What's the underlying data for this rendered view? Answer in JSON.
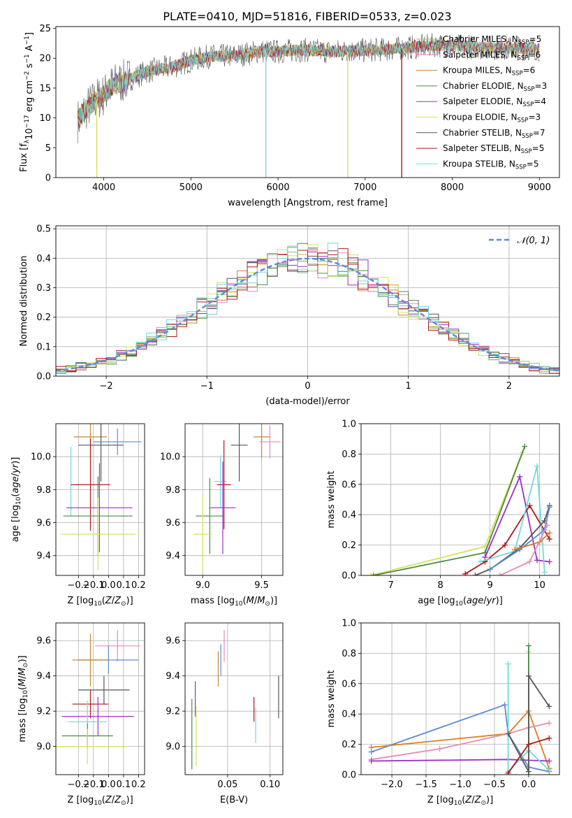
{
  "title": "PLATE=0410, MJD=51816, FIBERID=0533, z=0.023",
  "colors": {
    "Chabrier MILES": "#8fbf8f",
    "Salpeter MILES": "#e78ac3",
    "Kroupa MILES": "#c08a2a",
    "Chabrier ELODIE": "#4a8a4a",
    "Salpeter ELODIE": "#9b30c0",
    "Kroupa ELODIE": "#d8e05a",
    "Chabrier STELIB": "#555555",
    "Salpeter STELIB": "#b01818",
    "Kroupa STELIB": "#70d8dc",
    "gaussian": "#5b8ad8",
    "blue": "#5b8ad8",
    "orange": "#e07a20",
    "pink": "#e88ab8"
  },
  "chart_data": [
    {
      "type": "line",
      "panel": "spectrum",
      "xlabel": "wavelength [Angstrom, rest frame]",
      "ylabel": "Flux [fλ10⁻¹⁷ erg cm⁻² s⁻¹ A⁻¹]",
      "xlim": [
        3450,
        9230
      ],
      "ylim": [
        0,
        25.3
      ],
      "xticks": [
        4000,
        5000,
        6000,
        7000,
        8000,
        9000
      ],
      "yticks": [
        0,
        5,
        10,
        15,
        20,
        25
      ],
      "continuum": {
        "x": [
          3700,
          3800,
          3900,
          4000,
          4100,
          4300,
          4500,
          4800,
          5000,
          5200,
          5500,
          5800,
          6000,
          6300,
          6600,
          7000,
          7400,
          7800,
          8200,
          8600,
          9000
        ],
        "y": [
          9.5,
          11.5,
          13.0,
          13.8,
          15.5,
          16.5,
          17.8,
          18.6,
          19.6,
          20.3,
          20.4,
          21.2,
          21.1,
          21.4,
          21.1,
          21.3,
          21.6,
          22.2,
          21.9,
          21.7,
          21.6
        ]
      },
      "legend": [
        {
          "label": "Chabrier MILES, N",
          "sub": "SSP",
          "tail": "=5",
          "key": "Chabrier MILES"
        },
        {
          "label": "Salpeter MILES, N",
          "sub": "SSP",
          "tail": "=6",
          "key": "Salpeter MILES"
        },
        {
          "label": "Kroupa MILES, N",
          "sub": "SSP",
          "tail": "=6",
          "key": "Kroupa MILES"
        },
        {
          "label": "Chabrier ELODIE, N",
          "sub": "SSP",
          "tail": "=3",
          "key": "Chabrier ELODIE"
        },
        {
          "label": "Salpeter ELODIE, N",
          "sub": "SSP",
          "tail": "=4",
          "key": "Salpeter ELODIE"
        },
        {
          "label": "Kroupa ELODIE, N",
          "sub": "SSP",
          "tail": "=3",
          "key": "Kroupa ELODIE"
        },
        {
          "label": "Chabrier STELIB, N",
          "sub": "SSP",
          "tail": "=7",
          "key": "Chabrier STELIB"
        },
        {
          "label": "Salpeter STELIB, N",
          "sub": "SSP",
          "tail": "=5",
          "key": "Salpeter STELIB"
        },
        {
          "label": "Kroupa STELIB, N",
          "sub": "SSP",
          "tail": "=5",
          "key": "Kroupa STELIB"
        }
      ],
      "drops": [
        {
          "x": 3920,
          "series": "Kroupa ELODIE"
        },
        {
          "x": 5860,
          "series": "Kroupa STELIB"
        },
        {
          "x": 6800,
          "series": "Kroupa ELODIE"
        },
        {
          "x": 7420,
          "series": "Salpeter STELIB"
        }
      ]
    },
    {
      "type": "histogram",
      "panel": "residuals",
      "xlabel": "(data-model)/error",
      "ylabel": "Normed distribution",
      "xlim": [
        -2.5,
        2.5
      ],
      "ylim": [
        0,
        0.51
      ],
      "xticks": [
        -2,
        -1,
        0,
        1,
        2
      ],
      "yticks": [
        0.0,
        0.1,
        0.2,
        0.3,
        0.4,
        0.5
      ],
      "bin_width": 0.1,
      "legend": "𝒩(0, 1)",
      "grid": true
    },
    {
      "type": "errorbar",
      "panel": "age-vs-Z",
      "xlabel": "Z [log₁₀(Z/Z⊙)]",
      "ylabel": "age  [log₁₀(age/yr)]",
      "xlim": [
        -0.35,
        0.24
      ],
      "ylim": [
        9.28,
        10.2
      ],
      "xticks": [
        -0.2,
        -0.1,
        0.0,
        0.1,
        0.2
      ],
      "yticks": [
        9.4,
        9.6,
        9.8,
        10.0
      ],
      "points": [
        {
          "key": "Kroupa MILES",
          "x": -0.12,
          "xerr": 0.11,
          "y": 10.12,
          "yerr": 0.13
        },
        {
          "key": "blue",
          "x": 0.06,
          "xerr": 0.16,
          "y": 10.09,
          "yerr": 0.08
        },
        {
          "key": "Chabrier STELIB",
          "x": -0.05,
          "xerr": 0.15,
          "y": 10.07,
          "yerr": 0.22
        },
        {
          "key": "Kroupa STELIB",
          "x": -0.25,
          "xerr": 0.0,
          "y": 9.85,
          "yerr": 0.21
        },
        {
          "key": "Salpeter STELIB",
          "x": -0.12,
          "xerr": 0.13,
          "y": 9.83,
          "yerr": 0.28
        },
        {
          "key": "Salpeter ELODIE",
          "x": -0.06,
          "xerr": 0.22,
          "y": 9.69,
          "yerr": 0.27
        },
        {
          "key": "Chabrier ELODIE",
          "x": -0.07,
          "xerr": 0.23,
          "y": 9.64,
          "yerr": 0.24
        },
        {
          "key": "Kroupa ELODIE",
          "x": -0.07,
          "xerr": 0.25,
          "y": 9.53,
          "yerr": 0.22
        }
      ]
    },
    {
      "type": "errorbar",
      "panel": "age-vs-mass",
      "xlabel": "mass [log₁₀(M/M⊙)]",
      "ylabel": "",
      "xlim": [
        8.85,
        9.68
      ],
      "ylim": [
        9.28,
        10.2
      ],
      "xticks": [
        9.0,
        9.5
      ],
      "yticks": [
        9.4,
        9.6,
        9.8,
        10.0
      ],
      "points": [
        {
          "key": "Kroupa MILES",
          "x": 9.5,
          "xerr": 0.07,
          "y": 10.12,
          "yerr": 0.13
        },
        {
          "key": "Salpeter MILES",
          "x": 9.57,
          "xerr": 0.09,
          "y": 10.09,
          "yerr": 0.1
        },
        {
          "key": "Chabrier STELIB",
          "x": 9.31,
          "xerr": 0.07,
          "y": 10.07,
          "yerr": 0.22
        },
        {
          "key": "Kroupa STELIB",
          "x": 9.15,
          "xerr": 0.05,
          "y": 9.85,
          "yerr": 0.16
        },
        {
          "key": "Salpeter STELIB",
          "x": 9.18,
          "xerr": 0.06,
          "y": 9.83,
          "yerr": 0.27
        },
        {
          "key": "Salpeter ELODIE",
          "x": 9.17,
          "xerr": 0.11,
          "y": 9.69,
          "yerr": 0.28
        },
        {
          "key": "Chabrier ELODIE",
          "x": 9.06,
          "xerr": 0.12,
          "y": 9.64,
          "yerr": 0.23
        },
        {
          "key": "Kroupa ELODIE",
          "x": 9.0,
          "xerr": 0.08,
          "y": 9.53,
          "yerr": 0.23
        }
      ]
    },
    {
      "type": "line",
      "panel": "mass-weight-vs-age",
      "xlabel": "age  [log₁₀(age/yr)]",
      "ylabel": "mass weight",
      "xlim": [
        6.4,
        10.4
      ],
      "ylim": [
        0,
        1
      ],
      "xticks": [
        7,
        8,
        9,
        10
      ],
      "yticks": [
        0.0,
        0.2,
        0.4,
        0.6,
        0.8,
        1.0
      ],
      "series": [
        {
          "key": "Kroupa ELODIE",
          "x": [
            6.6,
            8.9,
            9.65
          ],
          "y": [
            0.0,
            0.19,
            0.81
          ]
        },
        {
          "key": "Chabrier ELODIE",
          "x": [
            6.65,
            8.9,
            9.7
          ],
          "y": [
            0.0,
            0.15,
            0.85
          ]
        },
        {
          "key": "Salpeter ELODIE",
          "x": [
            8.9,
            9.6,
            9.95,
            10.2
          ],
          "y": [
            0.12,
            0.65,
            0.1,
            0.09
          ]
        },
        {
          "key": "Salpeter STELIB",
          "x": [
            8.5,
            8.9,
            9.3,
            9.8,
            10.2
          ],
          "y": [
            0.01,
            0.09,
            0.2,
            0.46,
            0.24
          ]
        },
        {
          "key": "Kroupa STELIB",
          "x": [
            8.8,
            9.5,
            9.95,
            10.1
          ],
          "y": [
            0.09,
            0.16,
            0.72,
            0.02
          ]
        },
        {
          "key": "Chabrier STELIB",
          "x": [
            8.7,
            9.0,
            9.6,
            10.1,
            10.2
          ],
          "y": [
            0.0,
            0.04,
            0.18,
            0.36,
            0.46
          ]
        },
        {
          "key": "blue",
          "x": [
            9.0,
            9.6,
            10.1,
            10.2
          ],
          "y": [
            0.04,
            0.17,
            0.3,
            0.45
          ]
        },
        {
          "key": "orange",
          "x": [
            9.5,
            10.0,
            10.2
          ],
          "y": [
            0.17,
            0.22,
            0.28
          ]
        },
        {
          "key": "pink",
          "x": [
            9.2,
            9.8,
            10.15
          ],
          "y": [
            0.0,
            0.09,
            0.33
          ]
        }
      ]
    },
    {
      "type": "errorbar",
      "panel": "mass-vs-Z",
      "xlabel": "Z [log₁₀(Z/Z⊙)]",
      "ylabel": "mass [log₁₀(M/M⊙)]",
      "xlim": [
        -0.35,
        0.24
      ],
      "ylim": [
        8.84,
        9.7
      ],
      "xticks": [
        -0.2,
        -0.1,
        0.0,
        0.1,
        0.2
      ],
      "yticks": [
        9.0,
        9.2,
        9.4,
        9.6
      ],
      "points": [
        {
          "key": "Salpeter MILES",
          "x": 0.06,
          "xerr": 0.15,
          "y": 9.57,
          "yerr": 0.09
        },
        {
          "key": "blue",
          "x": 0.0,
          "xerr": 0.2,
          "y": 9.49,
          "yerr": 0.08
        },
        {
          "key": "Kroupa MILES",
          "x": -0.12,
          "xerr": 0.12,
          "y": 9.49,
          "yerr": 0.15
        },
        {
          "key": "Chabrier STELIB",
          "x": -0.03,
          "xerr": 0.17,
          "y": 9.32,
          "yerr": 0.08
        },
        {
          "key": "Salpeter STELIB",
          "x": -0.12,
          "xerr": 0.12,
          "y": 9.24,
          "yerr": 0.08
        },
        {
          "key": "Salpeter ELODIE",
          "x": -0.07,
          "xerr": 0.24,
          "y": 9.17,
          "yerr": 0.11
        },
        {
          "key": "Kroupa STELIB",
          "x": -0.14,
          "xerr": 0.13,
          "y": 9.14,
          "yerr": 0.12
        },
        {
          "key": "Chabrier ELODIE",
          "x": -0.14,
          "xerr": 0.17,
          "y": 9.06,
          "yerr": 0.07
        },
        {
          "key": "Kroupa ELODIE",
          "x": -0.14,
          "xerr": 0.26,
          "y": 9.0,
          "yerr": 0.1
        }
      ]
    },
    {
      "type": "errorbar",
      "panel": "mass-vs-EBV",
      "xlabel": "E(B-V)",
      "ylabel": "",
      "xlim": [
        0.0,
        0.115
      ],
      "ylim": [
        8.84,
        9.7
      ],
      "xticks": [
        0.05,
        0.1
      ],
      "yticks": [
        9.0,
        9.2,
        9.4,
        9.6
      ],
      "points": [
        {
          "key": "Salpeter MILES",
          "x": 0.046,
          "xerr": 0.0,
          "y": 9.57,
          "yerr": 0.09
        },
        {
          "key": "blue",
          "x": 0.042,
          "xerr": 0.0,
          "y": 9.49,
          "yerr": 0.09
        },
        {
          "key": "Kroupa MILES",
          "x": 0.039,
          "xerr": 0.0,
          "y": 9.44,
          "yerr": 0.1
        },
        {
          "key": "Chabrier STELIB",
          "x": 0.11,
          "xerr": 0.0,
          "y": 9.28,
          "yerr": 0.12
        },
        {
          "key": "Salpeter STELIB",
          "x": 0.081,
          "xerr": 0.0,
          "y": 9.21,
          "yerr": 0.07
        },
        {
          "key": "Kroupa STELIB",
          "x": 0.083,
          "xerr": 0.0,
          "y": 9.12,
          "yerr": 0.1
        },
        {
          "key": "Salpeter ELODIE",
          "x": 0.012,
          "xerr": 0.0,
          "y": 9.27,
          "yerr": 0.1
        },
        {
          "key": "Chabrier ELODIE",
          "x": 0.008,
          "xerr": 0.0,
          "y": 9.07,
          "yerr": 0.2
        },
        {
          "key": "Kroupa ELODIE",
          "x": 0.013,
          "xerr": 0.0,
          "y": 9.06,
          "yerr": 0.17
        }
      ]
    },
    {
      "type": "line",
      "panel": "mass-weight-vs-Z",
      "xlabel": "Z [log₁₀(Z/Z⊙)]",
      "ylabel": "mass weight",
      "xlim": [
        -2.45,
        0.45
      ],
      "ylim": [
        0,
        1
      ],
      "xticks": [
        -2.0,
        -1.5,
        -1.0,
        -0.5,
        0.0
      ],
      "yticks": [
        0.0,
        0.2,
        0.4,
        0.6,
        0.8,
        1.0
      ],
      "series": [
        {
          "key": "blue",
          "x": [
            -2.3,
            -0.35,
            -0.3,
            0.0,
            0.3
          ],
          "y": [
            0.15,
            0.46,
            0.27,
            0.05,
            0.02
          ]
        },
        {
          "key": "orange",
          "x": [
            -2.3,
            -0.3,
            0.0,
            0.3
          ],
          "y": [
            0.18,
            0.27,
            0.42,
            0.04
          ]
        },
        {
          "key": "pink",
          "x": [
            -2.3,
            -1.3,
            -0.3,
            0.0,
            0.3
          ],
          "y": [
            0.1,
            0.17,
            0.27,
            0.31,
            0.34
          ]
        },
        {
          "key": "Salpeter ELODIE",
          "x": [
            -2.3,
            -0.3,
            0.3
          ],
          "y": [
            0.09,
            0.1,
            0.09
          ]
        },
        {
          "key": "Kroupa STELIB",
          "x": [
            -0.3,
            -0.3,
            0.0,
            0.3
          ],
          "y": [
            0.73,
            0.02,
            0.16,
            0.03
          ]
        },
        {
          "key": "Kroupa ELODIE",
          "x": [
            0.0,
            0.0,
            0.0
          ],
          "y": [
            0.81,
            0.2,
            0.02
          ]
        },
        {
          "key": "Chabrier ELODIE",
          "x": [
            0.0,
            0.0
          ],
          "y": [
            0.85,
            0.0
          ]
        },
        {
          "key": "Chabrier STELIB",
          "x": [
            -0.3,
            0.0,
            0.0,
            0.3
          ],
          "y": [
            0.27,
            0.02,
            0.65,
            0.45
          ]
        },
        {
          "key": "Salpeter STELIB",
          "x": [
            -0.3,
            0.0,
            0.3
          ],
          "y": [
            0.01,
            0.2,
            0.24
          ]
        }
      ]
    }
  ]
}
